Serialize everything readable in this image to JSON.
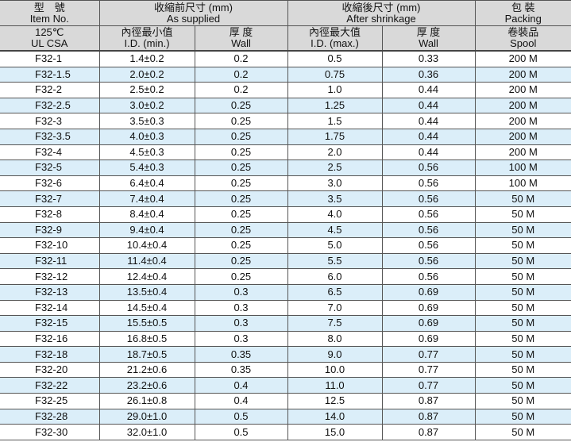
{
  "header": {
    "item": {
      "zh": "型　號",
      "en": "Item No."
    },
    "as_supplied": {
      "zh": "收縮前尺寸 (mm)",
      "en": "As supplied"
    },
    "after_shrinkage": {
      "zh": "收縮後尺寸 (mm)",
      "en": "After shrinkage"
    },
    "packing": {
      "zh": "包 裝",
      "en": "Packing"
    },
    "rating": {
      "zh": "125℃",
      "en": "UL CSA"
    },
    "id_min": {
      "zh": "內徑最小值",
      "en": "I.D. (min.)"
    },
    "wall1": {
      "zh": "厚 度",
      "en": "Wall"
    },
    "id_max": {
      "zh": "內徑最大值",
      "en": "I.D. (max.)"
    },
    "wall2": {
      "zh": "厚 度",
      "en": "Wall"
    },
    "spool": {
      "zh": "卷裝品",
      "en": "Spool"
    }
  },
  "colors": {
    "header_bg": "#d9d9d9",
    "stripe": "#dbeef9"
  },
  "rows": [
    [
      "F32-1",
      "1.4±0.2",
      "0.2",
      "0.5",
      "0.33",
      "200 M"
    ],
    [
      "F32-1.5",
      "2.0±0.2",
      "0.2",
      "0.75",
      "0.36",
      "200 M"
    ],
    [
      "F32-2",
      "2.5±0.2",
      "0.2",
      "1.0",
      "0.44",
      "200 M"
    ],
    [
      "F32-2.5",
      "3.0±0.2",
      "0.25",
      "1.25",
      "0.44",
      "200 M"
    ],
    [
      "F32-3",
      "3.5±0.3",
      "0.25",
      "1.5",
      "0.44",
      "200 M"
    ],
    [
      "F32-3.5",
      "4.0±0.3",
      "0.25",
      "1.75",
      "0.44",
      "200 M"
    ],
    [
      "F32-4",
      "4.5±0.3",
      "0.25",
      "2.0",
      "0.44",
      "200 M"
    ],
    [
      "F32-5",
      "5.4±0.3",
      "0.25",
      "2.5",
      "0.56",
      "100 M"
    ],
    [
      "F32-6",
      "6.4±0.4",
      "0.25",
      "3.0",
      "0.56",
      "100 M"
    ],
    [
      "F32-7",
      "7.4±0.4",
      "0.25",
      "3.5",
      "0.56",
      "50 M"
    ],
    [
      "F32-8",
      "8.4±0.4",
      "0.25",
      "4.0",
      "0.56",
      "50 M"
    ],
    [
      "F32-9",
      "9.4±0.4",
      "0.25",
      "4.5",
      "0.56",
      "50 M"
    ],
    [
      "F32-10",
      "10.4±0.4",
      "0.25",
      "5.0",
      "0.56",
      "50 M"
    ],
    [
      "F32-11",
      "11.4±0.4",
      "0.25",
      "5.5",
      "0.56",
      "50 M"
    ],
    [
      "F32-12",
      "12.4±0.4",
      "0.25",
      "6.0",
      "0.56",
      "50 M"
    ],
    [
      "F32-13",
      "13.5±0.4",
      "0.3",
      "6.5",
      "0.69",
      "50 M"
    ],
    [
      "F32-14",
      "14.5±0.4",
      "0.3",
      "7.0",
      "0.69",
      "50 M"
    ],
    [
      "F32-15",
      "15.5±0.5",
      "0.3",
      "7.5",
      "0.69",
      "50 M"
    ],
    [
      "F32-16",
      "16.8±0.5",
      "0.3",
      "8.0",
      "0.69",
      "50 M"
    ],
    [
      "F32-18",
      "18.7±0.5",
      "0.35",
      "9.0",
      "0.77",
      "50 M"
    ],
    [
      "F32-20",
      "21.2±0.6",
      "0.35",
      "10.0",
      "0.77",
      "50 M"
    ],
    [
      "F32-22",
      "23.2±0.6",
      "0.4",
      "11.0",
      "0.77",
      "50 M"
    ],
    [
      "F32-25",
      "26.1±0.8",
      "0.4",
      "12.5",
      "0.87",
      "50 M"
    ],
    [
      "F32-28",
      "29.0±1.0",
      "0.5",
      "14.0",
      "0.87",
      "50 M"
    ],
    [
      "F32-30",
      "32.0±1.0",
      "0.5",
      "15.0",
      "0.87",
      "50 M"
    ]
  ]
}
